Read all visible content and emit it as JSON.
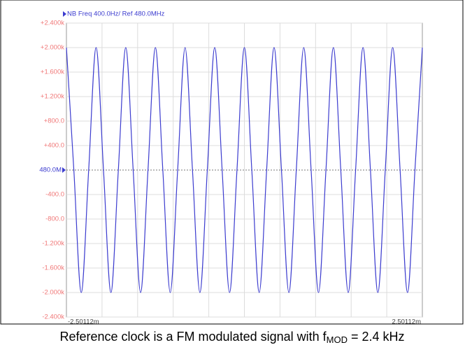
{
  "chart_data": {
    "type": "line",
    "header": "NB Freq 400.0Hz/ Ref 480.0MHz",
    "caption": {
      "text": "Reference clock is a FM modulated signal with f",
      "subscript": "MOD",
      "rest": " = 2.4 kHz"
    },
    "x": [
      -2.5011,
      -2.3969,
      -2.2927,
      -2.1885,
      -2.0843,
      -1.9801,
      -1.8759,
      -1.7716,
      -1.6674,
      -1.5632,
      -1.459,
      -1.3548,
      -1.2506,
      -1.1464,
      -1.0421,
      -0.9379,
      -0.8337,
      -0.7295,
      -0.6253,
      -0.5211,
      -0.4169,
      -0.3127,
      -0.2084,
      -0.1042,
      0,
      0.1042,
      0.2084,
      0.3127,
      0.4169,
      0.5211,
      0.6253,
      0.7295,
      0.8337,
      0.9379,
      1.0421,
      1.1464,
      1.2506,
      1.3548,
      1.459,
      1.5632,
      1.6674,
      1.7716,
      1.8759,
      1.9801,
      2.0843,
      2.1885,
      2.2927,
      2.3969,
      2.5011
    ],
    "series": [
      {
        "color": "#3c3ccf",
        "values": [
          2000,
          0,
          -2000,
          0,
          2000,
          0,
          -2000,
          0,
          2000,
          0,
          -2000,
          0,
          2000,
          0,
          -2000,
          0,
          2000,
          0,
          -2000,
          0,
          2000,
          0,
          -2000,
          0,
          2000,
          0,
          -2000,
          0,
          2000,
          0,
          -2000,
          0,
          2000,
          0,
          -2000,
          0,
          2000,
          0,
          -2000,
          0,
          2000,
          0,
          -2000,
          0,
          2000,
          0,
          -2000,
          0,
          2000
        ]
      }
    ],
    "xlim": [
      -2.50112,
      2.50112
    ],
    "xticks": [
      {
        "value": -2.50112,
        "label": "-2.50112m"
      },
      {
        "value": 2.50112,
        "label": "2.50112m"
      }
    ],
    "ylim": [
      -2400,
      2400
    ],
    "yticks": [
      {
        "value": 2400,
        "label": "+2.400k"
      },
      {
        "value": 2000,
        "label": "+2.000k"
      },
      {
        "value": 1600,
        "label": "+1.600k"
      },
      {
        "value": 1200,
        "label": "+1.200k"
      },
      {
        "value": 800,
        "label": "+800.0"
      },
      {
        "value": 400,
        "label": "+400.0"
      },
      {
        "value": 0,
        "label": "480.0M"
      },
      {
        "value": -400,
        "label": "-400.0"
      },
      {
        "value": -800,
        "label": "-800.0"
      },
      {
        "value": -1200,
        "label": "-1.200k"
      },
      {
        "value": -1600,
        "label": "-1.600k"
      },
      {
        "value": -2000,
        "label": "-2.000k"
      },
      {
        "value": -2400,
        "label": "-2.400k"
      }
    ],
    "grid": true
  }
}
